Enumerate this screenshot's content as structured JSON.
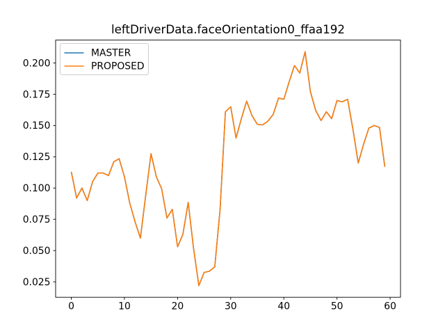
{
  "chart_data": {
    "type": "line",
    "title": "leftDriverData.faceOrientation0_ffaa192",
    "xlabel": "",
    "ylabel": "",
    "grid": false,
    "legend": {
      "position": "upper left",
      "entries": [
        "MASTER",
        "PROPOSED"
      ]
    },
    "xlim": [
      -2.95,
      61.95
    ],
    "ylim": [
      0.01265,
      0.21835
    ],
    "xticks": [
      0,
      10,
      20,
      30,
      40,
      50,
      60
    ],
    "xtick_labels": [
      "0",
      "10",
      "20",
      "30",
      "40",
      "50",
      "60"
    ],
    "yticks": [
      0.025,
      0.05,
      0.075,
      0.1,
      0.125,
      0.15,
      0.175,
      0.2
    ],
    "ytick_labels": [
      "0.025",
      "0.050",
      "0.075",
      "0.100",
      "0.125",
      "0.150",
      "0.175",
      "0.200"
    ],
    "x": [
      0,
      1,
      2,
      3,
      4,
      5,
      6,
      7,
      8,
      9,
      10,
      11,
      12,
      13,
      14,
      15,
      16,
      17,
      18,
      19,
      20,
      21,
      22,
      23,
      24,
      25,
      26,
      27,
      28,
      29,
      30,
      31,
      32,
      33,
      34,
      35,
      36,
      37,
      38,
      39,
      40,
      41,
      42,
      43,
      44,
      45,
      46,
      47,
      48,
      49,
      50,
      51,
      52,
      53,
      54,
      55,
      56,
      57,
      58,
      59
    ],
    "series": [
      {
        "name": "MASTER",
        "color": "#1f77b4",
        "values": [
          0.113,
          0.092,
          0.1,
          0.09,
          0.105,
          0.112,
          0.112,
          0.11,
          0.121,
          0.1235,
          0.109,
          0.088,
          0.073,
          0.06,
          0.094,
          0.1275,
          0.109,
          0.0995,
          0.076,
          0.083,
          0.053,
          0.063,
          0.0885,
          0.052,
          0.022,
          0.0325,
          0.0335,
          0.037,
          0.083,
          0.161,
          0.165,
          0.14,
          0.1555,
          0.1695,
          0.158,
          0.151,
          0.1505,
          0.1535,
          0.159,
          0.172,
          0.171,
          0.185,
          0.198,
          0.192,
          0.209,
          0.177,
          0.162,
          0.154,
          0.161,
          0.1555,
          0.17,
          0.169,
          0.171,
          0.147,
          0.12,
          0.135,
          0.148,
          0.15,
          0.1485,
          0.117
        ]
      },
      {
        "name": "PROPOSED",
        "color": "#ff7f0e",
        "values": [
          0.113,
          0.092,
          0.1,
          0.09,
          0.105,
          0.112,
          0.112,
          0.11,
          0.121,
          0.1235,
          0.109,
          0.088,
          0.073,
          0.06,
          0.094,
          0.1275,
          0.109,
          0.0995,
          0.076,
          0.083,
          0.053,
          0.063,
          0.0885,
          0.052,
          0.022,
          0.0325,
          0.0335,
          0.037,
          0.083,
          0.161,
          0.165,
          0.14,
          0.1555,
          0.1695,
          0.158,
          0.151,
          0.1505,
          0.1535,
          0.159,
          0.172,
          0.171,
          0.185,
          0.198,
          0.192,
          0.209,
          0.177,
          0.162,
          0.154,
          0.161,
          0.1555,
          0.17,
          0.169,
          0.171,
          0.147,
          0.12,
          0.135,
          0.148,
          0.15,
          0.1485,
          0.117
        ]
      }
    ]
  }
}
